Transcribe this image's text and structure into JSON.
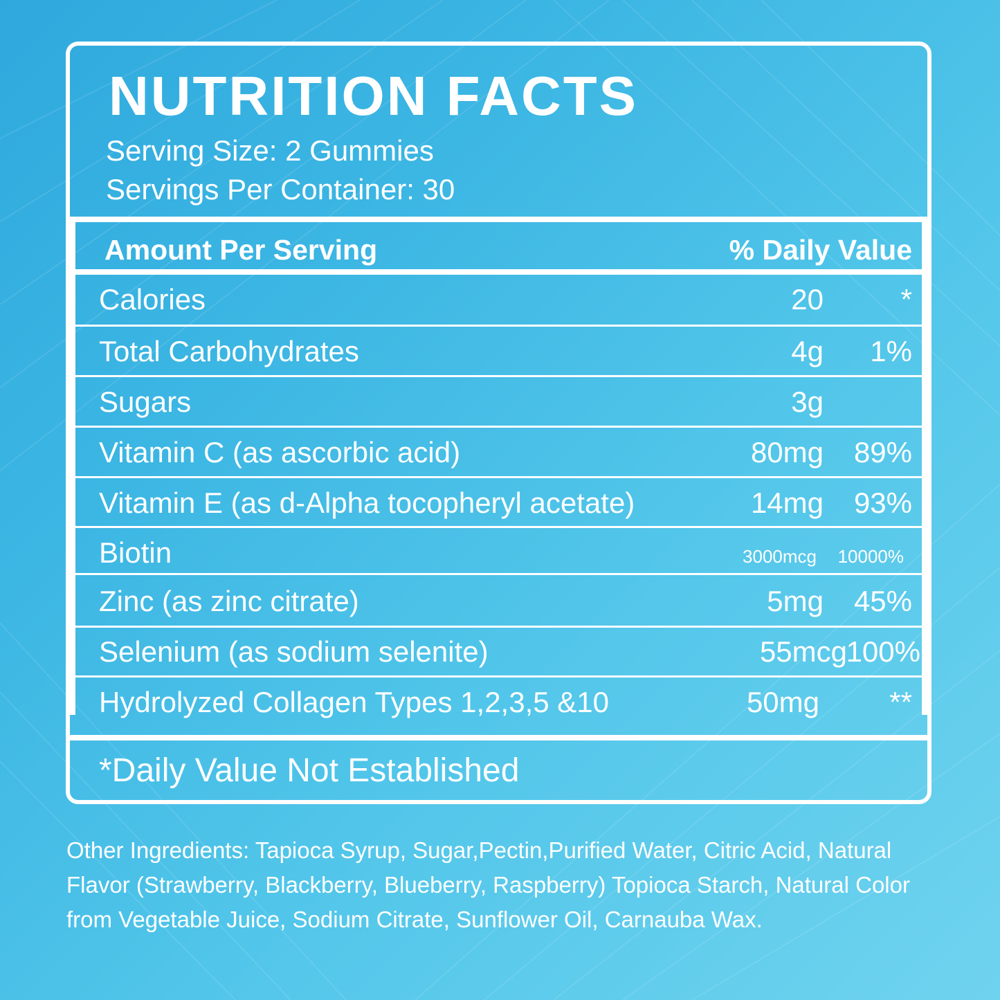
{
  "label": {
    "title": "NUTRITION FACTS",
    "serving_size": "Serving Size: 2 Gummies",
    "servings_per_container": "Servings Per Container: 30",
    "header_amount": "Amount Per Serving",
    "header_daily_value": "% Daily Value",
    "rows": [
      {
        "name": "Calories",
        "amount": "20",
        "daily_value": "*"
      },
      {
        "name": "Total Carbohydrates",
        "amount": "4g",
        "daily_value": "1%"
      },
      {
        "name": "Sugars",
        "amount": "3g",
        "daily_value": ""
      },
      {
        "name": "Vitamin C (as ascorbic acid)",
        "amount": "80mg",
        "daily_value": "89%"
      },
      {
        "name": "Vitamin E (as d-Alpha tocopheryl acetate)",
        "amount": "14mg",
        "daily_value": "93%"
      },
      {
        "name": "Biotin",
        "amount": "3000mcg",
        "daily_value": "10000%"
      },
      {
        "name": "Zinc (as zinc citrate)",
        "amount": "5mg",
        "daily_value": "45%"
      },
      {
        "name": "Selenium (as sodium selenite)",
        "amount": "55mcg",
        "daily_value": "100%"
      },
      {
        "name": "Hydrolyzed Collagen Types 1,2,3,5 &10",
        "amount": "50mg",
        "daily_value": "**"
      }
    ],
    "footnote": "*Daily Value Not Established"
  },
  "other_ingredients": "Other Ingredients: Tapioca Syrup, Sugar,Pectin,Purified Water, Citric Acid, Natural Flavor (Strawberry, Blackberry, Blueberry, Raspberry) Topioca Starch, Natural Color from Vegetable Juice, Sodium Citrate, Sunflower Oil, Carnauba Wax.",
  "colors": {
    "background_top": "#2fa9dd",
    "background_bottom": "#6fd3ee",
    "text": "#ffffff"
  }
}
